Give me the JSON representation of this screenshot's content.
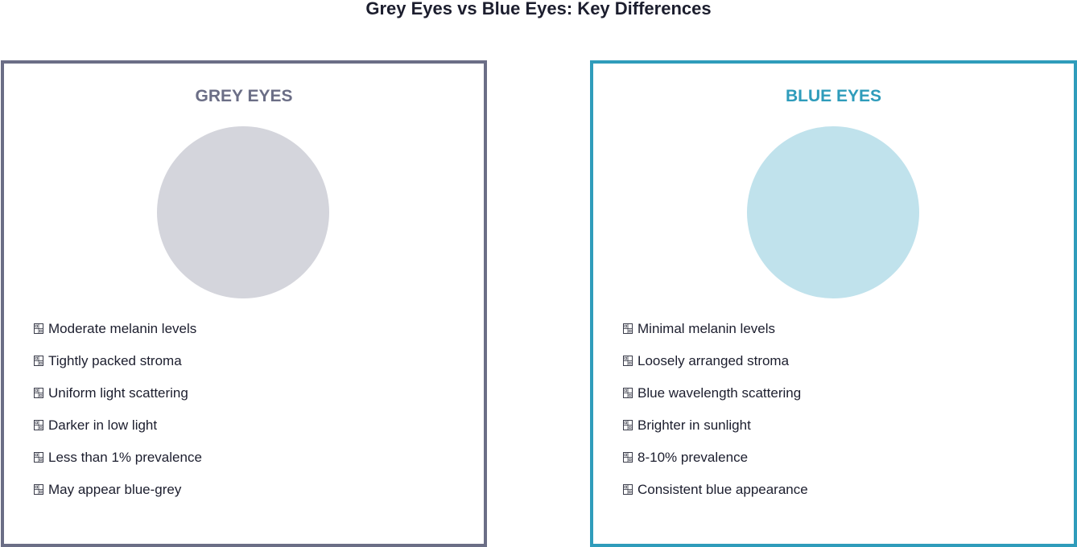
{
  "title": "Grey Eyes vs Blue Eyes: Key Differences",
  "panels": [
    {
      "heading": "GREY EYES",
      "accent_color": "#6b6e86",
      "swatch_color": "#d4d5dc",
      "features": [
        "Moderate melanin levels",
        "Tightly packed stroma",
        "Uniform light scattering",
        "Darker in low light",
        "Less than 1% prevalence",
        "May appear blue-grey"
      ]
    },
    {
      "heading": "BLUE EYES",
      "accent_color": "#2f9cbb",
      "swatch_color": "#c0e2ec",
      "features": [
        "Minimal melanin levels",
        "Loosely arranged stroma",
        "Blue wavelength scattering",
        "Brighter in sunlight",
        "8-10% prevalence",
        "Consistent blue appearance"
      ]
    }
  ],
  "feature_icon": "missing-glyph-icon"
}
